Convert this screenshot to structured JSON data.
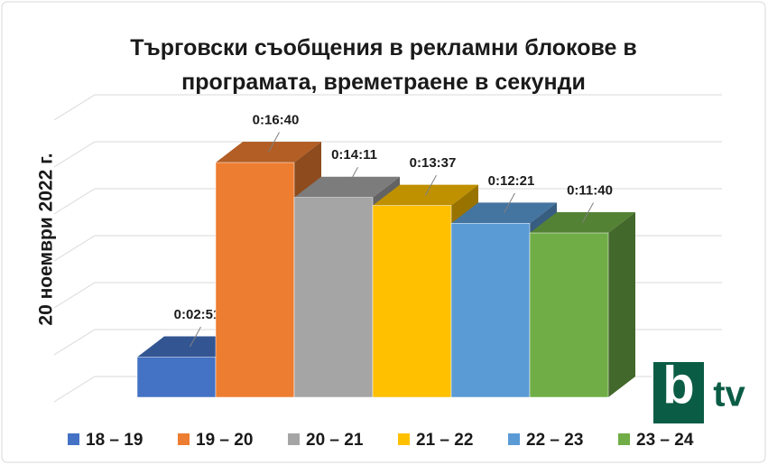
{
  "chart_data": {
    "type": "bar3d",
    "title": "Търговски съобщения в рекламни блокове в програмата, времетраене в секунди",
    "y_label": "20 ноември 2022 г.",
    "categories": [
      "18 – 19",
      "19 – 20",
      "20 – 21",
      "21 – 22",
      "22 – 23",
      "23 – 24"
    ],
    "values": [
      171,
      1000,
      851,
      817,
      741,
      700
    ],
    "value_labels": [
      "0:02:51",
      "0:16:40",
      "0:14:11",
      "0:13:37",
      "0:12:21",
      "0:11:40"
    ],
    "colors": [
      "#4472c4",
      "#ed7d31",
      "#a5a5a5",
      "#ffc000",
      "#5b9bd5",
      "#70ad47"
    ],
    "ylim": [
      0,
      1200
    ],
    "yticks": [
      0,
      200,
      400,
      600,
      800,
      1000,
      1200
    ],
    "grid": true,
    "legend": "bottom"
  },
  "logo": {
    "b": "b",
    "tv": "tv"
  }
}
